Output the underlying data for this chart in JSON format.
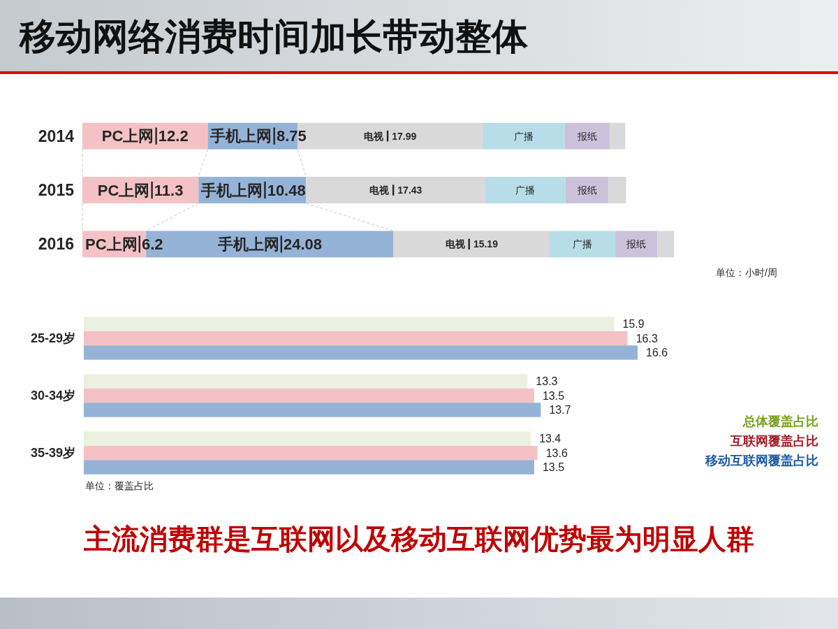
{
  "chart_data": [
    {
      "type": "bar",
      "orientation": "horizontal",
      "stacked": true,
      "title": "移动网络消费时间加长带动整体",
      "categories": [
        "2014",
        "2015",
        "2016"
      ],
      "series": [
        {
          "name": "PC上网",
          "color": "#f4c2c5",
          "values": [
            12.2,
            11.3,
            6.2
          ],
          "value_labels": [
            "12.2",
            "11.3",
            "6.2"
          ]
        },
        {
          "name": "手机上网",
          "color": "#95b3d7",
          "values": [
            8.75,
            10.48,
            24.08
          ],
          "value_labels": [
            "8.75",
            "10.48",
            "24.08"
          ]
        },
        {
          "name": "电视",
          "color": "#d9d9d9",
          "values": [
            17.99,
            17.43,
            15.19
          ],
          "value_labels": [
            "17.99",
            "17.43",
            "15.19"
          ]
        },
        {
          "name": "广播",
          "color": "#b7dee8",
          "values": [
            8.0,
            7.8,
            6.4
          ]
        },
        {
          "name": "报纸",
          "color": "#ccc1da",
          "values": [
            4.4,
            4.2,
            4.1
          ]
        },
        {
          "color": "#d9d9d9",
          "values": [
            1.5,
            1.7,
            1.6
          ]
        }
      ],
      "annotations": [
        "单位：小时/周"
      ]
    },
    {
      "type": "bar",
      "orientation": "horizontal",
      "categories": [
        "25-29岁",
        "30-34岁",
        "35-39岁"
      ],
      "series": [
        {
          "name": "总体覆盖占比",
          "color": "#ebf1de",
          "values": [
            15.9,
            13.3,
            13.4
          ]
        },
        {
          "name": "互联网覆盖占比",
          "color": "#f4c2c5",
          "values": [
            16.3,
            13.5,
            13.6
          ]
        },
        {
          "name": "移动互联网覆盖占比",
          "color": "#95b3d7",
          "values": [
            16.6,
            13.7,
            13.5
          ]
        }
      ],
      "data_labels": true,
      "legend": "bottom right",
      "annotations": [
        "单位：覆盖占比",
        "主流消费群是互联网以及移动互联网优势最为明显人群"
      ]
    }
  ]
}
